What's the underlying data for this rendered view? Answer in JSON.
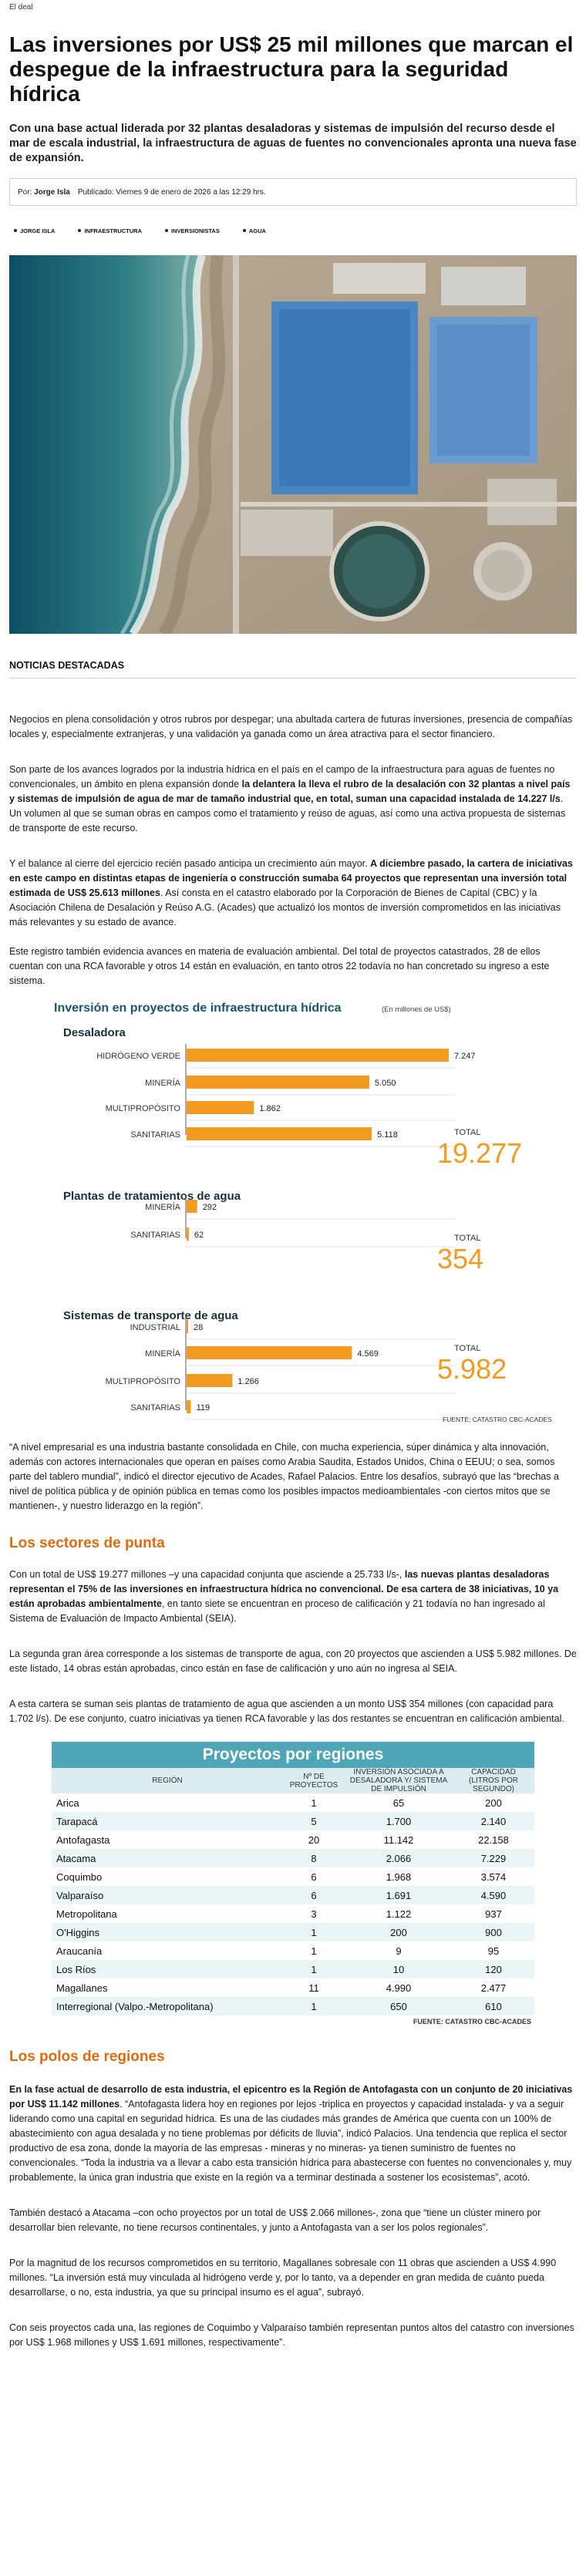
{
  "section_tag": "El deal",
  "title": "Las inversiones por US$ 25 mil millones que marcan el despegue de la infraestructura para la seguridad hídrica",
  "lead": "Con una base actual liderada por 32 plantas desaladoras y sistemas de impulsión del recurso desde el mar de escala industrial, la infraestructura de aguas de fuentes no convencionales apronta una nueva fase de expansión.",
  "meta": {
    "author_prefix": "Por:",
    "author": "Jorge Isla",
    "published": "Publicado: Viernes 9 de enero de 2026 a las 12:29 hrs."
  },
  "tags": [
    "JORGE ISLA",
    "INFRAESTRUCTURA",
    "INVERSIONISTAS",
    "AGUA"
  ],
  "featured_label": "NOTICIAS DESTACADAS",
  "paragraphs": {
    "p1": "Negocios en plena consolidación y otros rubros por despegar; una abultada cartera de futuras inversiones, presencia de compañías locales y, especialmente extranjeras, y una validación ya ganada como un área atractiva para el sector financiero.",
    "p2a": "Son parte de los avances logrados por la industria hídrica en el país en el campo de la infraestructura para aguas de fuentes no convencionales, un ámbito en plena expansión donde ",
    "p2b": "la delantera la lleva el rubro de la desalación con 32 plantas a nivel país y sistemas de impulsión de agua de mar de tamaño industrial que, en total, suman una capacidad instalada de 14.227 l/s",
    "p2c": ". Un volumen al que se suman obras en campos como el tratamiento y reúso de aguas, así como una activa propuesta de sistemas de transporte de este recurso.",
    "p3a": "Y el balance al cierre del ejercicio recién pasado anticipa un crecimiento aún mayor. ",
    "p3b": "A diciembre pasado, la cartera de iniciativas en este campo en distintas etapas de ingeniería o construcción sumaba 64 proyectos que representan una inversión total estimada de US$ 25.613 millones",
    "p3c": ". Así consta en el catastro elaborado por la Corporación de Bienes de Capital (CBC) y la Asociación Chilena de Desalación y Reúso A.G. (Acades) que actualizó los montos de inversión comprometidos en las iniciativas más relevantes y su estado de avance.",
    "p4": "Este registro también evidencia avances en materia de evaluación ambiental. Del total de proyectos catastrados, 28 de ellos cuentan con una RCA favorable y otros 14 están en evaluación, en tanto otros 22 todavía no han concretado su ingreso a este sistema.",
    "p5": "“A nivel empresarial es una industria bastante consolidada en Chile, con mucha experiencia, súper dinámica y alta innovación, además con actores internacionales que operan en países como Arabia Saudita, Estados Unidos, China o EEUU; o sea, somos parte del tablero mundial”, indicó el director ejecutivo de Acades, Rafael Palacios.  Entre los desafíos, subrayó que las “brechas a nivel de política pública y de opinión pública en temas como los posibles impactos medioambientales -con ciertos mitos que se mantienen-, y nuestro liderazgo en la región”.",
    "h2": "Los sectores de punta",
    "p6a": "Con un total de US$ 19.277 millones –y una capacidad conjunta que asciende a 25.733 l/s-, ",
    "p6b": "las nuevas plantas desaladoras representan el 75% de las inversiones en infraestructura hídrica no convencional. De esa cartera de 38 iniciativas, 10 ya están aprobadas ambientalmente",
    "p6c": ", en tanto siete se encuentran en proceso de calificación y 21 todavía no han ingresado al Sistema de Evaluación de Impacto Ambiental (SEIA).",
    "p7": "La segunda gran área corresponde a los sistemas de transporte de agua, con 20 proyectos que ascienden a US$ 5.982 millones. De este listado, 14 obras están aprobadas, cinco están en fase de calificación y uno aún no ingresa al SEIA.",
    "p8": "A esta cartera se suman seis plantas de tratamiento de agua que ascienden a un monto US$ 354 millones (con capacidad para 1.702 l/s). De ese conjunto, cuatro iniciativas ya tienen RCA favorable y las dos restantes se encuentran en calificación ambiental.",
    "h3": "Los polos de regiones",
    "p9a": "En la fase actual de desarrollo de esta industria, el epicentro es la Región de Antofagasta con un conjunto de 20 iniciativas por US$ 11.142 millones",
    "p9b": ". “Antofagasta lidera hoy en regiones por lejos -triplica en proyectos y capacidad instalada- y va a seguir liderando como una capital en seguridad hídrica. Es una de las ciudades más grandes de América que cuenta con un 100% de abastecimiento con agua desalada y no tiene problemas por déficits de lluvia”, indicó Palacios. Una tendencia que replica el sector productivo de esa zona, donde la mayoría de las empresas - mineras y no mineras- ya tienen suministro de fuentes no convencionales. “Toda la industria va a llevar a cabo esta transición hídrica para abastecerse con fuentes no convencionales y, muy probablemente, la única gran industria que existe en la región va a terminar destinada a sostener los ecosistemas”, acotó.",
    "p10": "También destacó a Atacama –con ocho proyectos por un total de US$ 2.066 millones-, zona que “tiene un clúster minero por desarrollar bien relevante, no tiene recursos continentales, y junto a Antofagasta van a ser los polos regionales”.",
    "p11": "Por la magnitud de los recursos comprometidos en su territorio, Magallanes sobresale con 11 obras que ascienden a US$ 4.990 millones. “La inversión está muy vinculada al hidrógeno verde y, por lo tanto, va a depender en gran medida de cuánto pueda desarrollarse, o no, esta industria, ya que su principal insumo es el agua”, subrayó.",
    "p12": "Con seis proyectos cada una, las regiones de Coquimbo y Valparaíso también representan puntos altos del catastro con inversiones por US$ 1.968 millones y US$ 1.691 millones, respectivamente”."
  },
  "chart_data": {
    "type": "bar",
    "title": "Inversión en proyectos de infraestructura hídrica",
    "unit": "(En millones de US$)",
    "orientation": "horizontal",
    "source": "FUENTE: CATASTRO CBC-ACADES",
    "total_label": "TOTAL",
    "panels": [
      {
        "name": "Desaladora",
        "categories": [
          "HIDRÓGENO VERDE",
          "MINERÍA",
          "MULTIPROPÓSITO",
          "SANITARIAS"
        ],
        "values": [
          7247,
          5050,
          1862,
          5118
        ],
        "value_labels": [
          "7.247",
          "5.050",
          "1.862",
          "5.118"
        ],
        "total": "19.277"
      },
      {
        "name": "Plantas de tratamientos de agua",
        "categories": [
          "MINERÍA",
          "SANITARIAS"
        ],
        "values": [
          292,
          62
        ],
        "value_labels": [
          "292",
          "62"
        ],
        "total": "354"
      },
      {
        "name": "Sistemas de transporte de agua",
        "categories": [
          "INDUSTRIAL",
          "MINERÍA",
          "MULTIPROPÓSITO",
          "SANITARIAS"
        ],
        "values": [
          28,
          4569,
          1266,
          119
        ],
        "value_labels": [
          "28",
          "4.569",
          "1.266",
          "119"
        ],
        "total": "5.982"
      }
    ],
    "colors": {
      "bar": "#f39a21",
      "total": "#f39a21",
      "title": "#19556a"
    }
  },
  "regions_table": {
    "title": "Proyectos por regiones",
    "headers": [
      "REGIÓN",
      "Nº DE PROYECTOS",
      "INVERSIÓN ASOCIADA A DESALADORA Y/ SISTEMA DE IMPULSIÓN",
      "CAPACIDAD (LITROS POR SEGUNDO)"
    ],
    "rows": [
      [
        "Arica",
        "1",
        "65",
        "200"
      ],
      [
        "Tarapacá",
        "5",
        "1.700",
        "2.140"
      ],
      [
        "Antofagasta",
        "20",
        "11.142",
        "22.158"
      ],
      [
        "Atacama",
        "8",
        "2.066",
        "7.229"
      ],
      [
        "Coquimbo",
        "6",
        "1.968",
        "3.574"
      ],
      [
        "Valparaíso",
        "6",
        "1.691",
        "4.590"
      ],
      [
        "Metropolitana",
        "3",
        "1.122",
        "937"
      ],
      [
        "O'Higgins",
        "1",
        "200",
        "900"
      ],
      [
        "Araucanía",
        "1",
        "9",
        "95"
      ],
      [
        "Los Ríos",
        "1",
        "10",
        "120"
      ],
      [
        "Magallanes",
        "11",
        "4.990",
        "2.477"
      ],
      [
        "Interregional (Valpo.-Metropolitana)",
        "1",
        "650",
        "610"
      ]
    ],
    "source": "FUENTE: CATASTRO CBC-ACADES"
  },
  "icons": {
    "tag_bullet": "dot-icon"
  }
}
